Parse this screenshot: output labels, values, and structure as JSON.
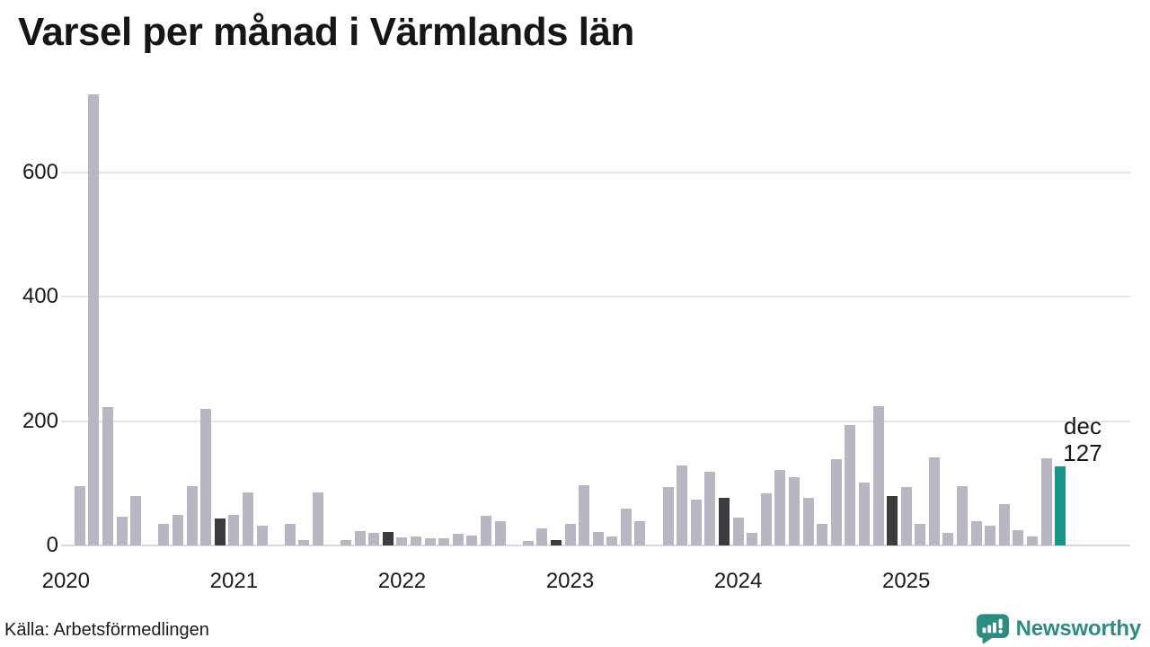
{
  "title": "Varsel per månad i Värmlands län",
  "source": "Källa: Arbetsförmedlingen",
  "branding": {
    "name": "Newsworthy"
  },
  "annotation": {
    "month_label": "dec",
    "value_label": "127"
  },
  "colors": {
    "bar_default": "#b9b6c4",
    "bar_december": "#3d3b40",
    "bar_latest": "#1a9488",
    "brand_teal": "#2e8b82",
    "text": "#1a1a1a",
    "gridline": "#e4e4e7"
  },
  "chart_data": {
    "type": "bar",
    "title": "Varsel per månad i Värmlands län",
    "xlabel": "",
    "ylabel": "",
    "yticks": [
      0,
      200,
      400,
      600
    ],
    "ylim": [
      0,
      740
    ],
    "grid": "horizontal",
    "legend": "none",
    "year_labels": [
      "2020",
      "2021",
      "2022",
      "2023",
      "2024",
      "2025"
    ],
    "values_by_year": {
      "2020": [
        0,
        95,
        725,
        223,
        46,
        80,
        0,
        35,
        49,
        95,
        220,
        43
      ],
      "2021": [
        49,
        85,
        32,
        0,
        35,
        9,
        85,
        0,
        8,
        23,
        20,
        21
      ],
      "2022": [
        13,
        15,
        11,
        12,
        19,
        16,
        47,
        39,
        0,
        7,
        28,
        9
      ],
      "2023": [
        34,
        97,
        22,
        15,
        59,
        39,
        0,
        94,
        129,
        74,
        118,
        77
      ],
      "2024": [
        45,
        20,
        84,
        122,
        110,
        77,
        35,
        139,
        193,
        101,
        224,
        79
      ],
      "2025": [
        94,
        35,
        141,
        20,
        96,
        39,
        32,
        66,
        24,
        14,
        140,
        127
      ]
    },
    "highlight_rules": {
      "december_bars": "dark",
      "latest_bar": "teal"
    },
    "last_point_label": {
      "month": "dec",
      "value": 127
    }
  }
}
